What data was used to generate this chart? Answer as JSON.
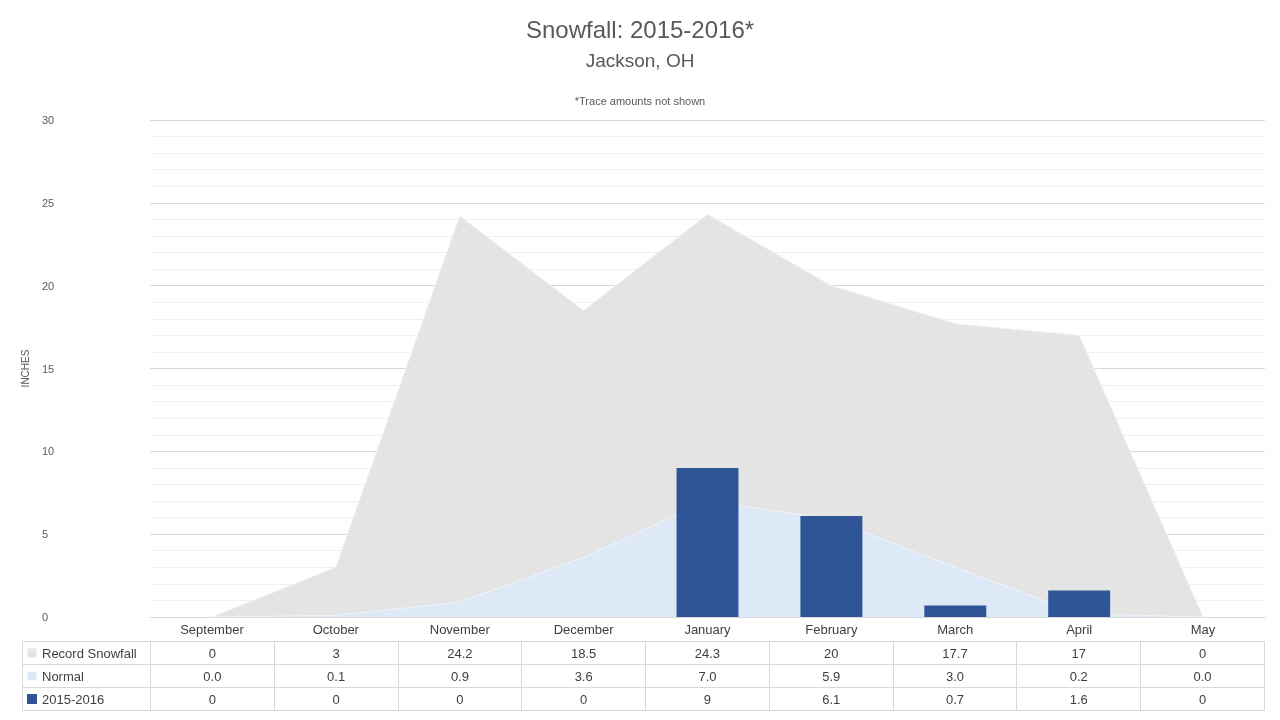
{
  "chart_data": {
    "type": "area",
    "title": "Snowfall: 2015-2016*",
    "subtitle": "Jackson, OH",
    "ylabel": "INCHES",
    "annotations": [
      "*Trace amounts not shown"
    ],
    "categories": [
      "September",
      "October",
      "November",
      "December",
      "January",
      "February",
      "March",
      "April",
      "May"
    ],
    "series": [
      {
        "name": "Record Snowfall",
        "color": "#e4e4e4",
        "values": [
          0,
          3,
          24.2,
          18.5,
          24.3,
          20,
          17.7,
          17,
          0
        ],
        "value_labels": [
          "0",
          "3",
          "24.2",
          "18.5",
          "24.3",
          "20",
          "17.7",
          "17",
          "0"
        ]
      },
      {
        "name": "Normal",
        "color": "#dde9f6",
        "values": [
          0.0,
          0.1,
          0.9,
          3.6,
          7.0,
          5.9,
          3.0,
          0.2,
          0.0
        ],
        "value_labels": [
          "0.0",
          "0.1",
          "0.9",
          "3.6",
          "7.0",
          "5.9",
          "3.0",
          "0.2",
          "0.0"
        ]
      },
      {
        "name": "2015-2016",
        "type": "bar",
        "color": "#2f5597",
        "values": [
          0,
          0,
          0,
          0,
          9,
          6.1,
          0.7,
          1.6,
          0
        ],
        "value_labels": [
          "0",
          "0",
          "0",
          "0",
          "9",
          "6.1",
          "0.7",
          "1.6",
          "0"
        ]
      }
    ],
    "ylim": [
      0,
      30
    ],
    "yticks": [
      0,
      5,
      10,
      15,
      20,
      25,
      30
    ],
    "grid": "y",
    "legend": "bottom"
  }
}
